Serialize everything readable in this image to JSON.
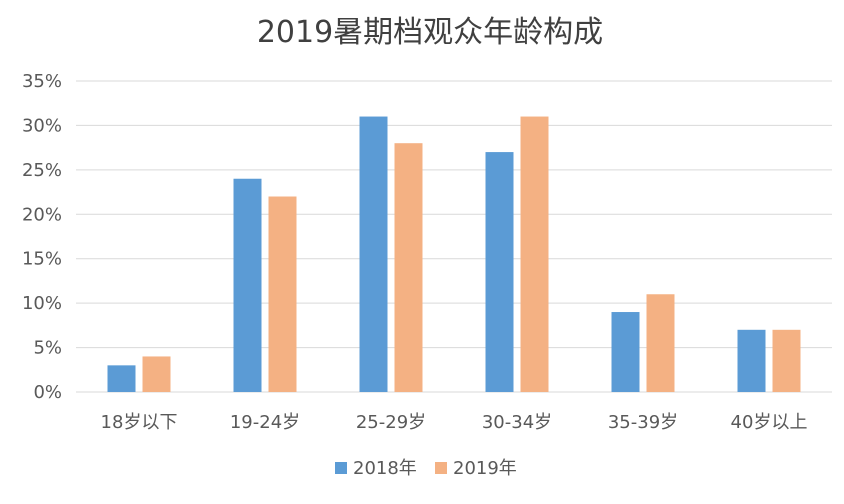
{
  "chart_data": {
    "type": "bar",
    "title": "2019暑期档观众年龄构成",
    "xlabel": "",
    "ylabel": "",
    "categories": [
      "18岁以下",
      "19-24岁",
      "25-29岁",
      "30-34岁",
      "35-39岁",
      "40岁以上"
    ],
    "series": [
      {
        "name": "2018年",
        "color": "#5b9bd5",
        "values": [
          3,
          24,
          31,
          27,
          9,
          7
        ]
      },
      {
        "name": "2019年",
        "color": "#f4b183",
        "values": [
          4,
          22,
          28,
          31,
          11,
          7
        ]
      }
    ],
    "ylim": [
      0,
      35
    ],
    "yticks": [
      0,
      5,
      10,
      15,
      20,
      25,
      30,
      35
    ],
    "ytick_labels": [
      "0%",
      "5%",
      "10%",
      "15%",
      "20%",
      "25%",
      "30%",
      "35%"
    ],
    "grid": true,
    "legend_position": "bottom"
  }
}
